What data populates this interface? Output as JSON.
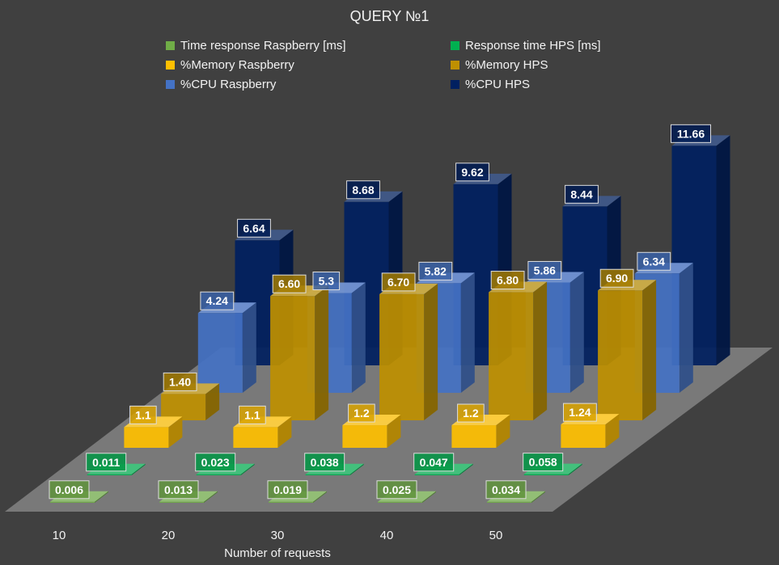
{
  "chart_data": {
    "type": "bar",
    "title": "QUERY №1",
    "xlabel": "Number of requests",
    "ylabel": "",
    "categories": [
      "10",
      "20",
      "30",
      "40",
      "50"
    ],
    "legend_position": "top",
    "grid": false,
    "series": [
      {
        "name": "Time response Raspberry [ms]",
        "color": "#70ad47",
        "values": [
          0.006,
          0.013,
          0.019,
          0.025,
          0.034
        ],
        "labels": [
          "0.006",
          "0.013",
          "0.019",
          "0.025",
          "0.034"
        ]
      },
      {
        "name": "Response time HPS [ms]",
        "color": "#00b050",
        "values": [
          0.011,
          0.023,
          0.038,
          0.047,
          0.058
        ],
        "labels": [
          "0.011",
          "0.023",
          "0.038",
          "0.047",
          "0.058"
        ]
      },
      {
        "name": "%Memory Raspberry",
        "color": "#ffc000",
        "values": [
          1.1,
          1.1,
          1.2,
          1.2,
          1.24
        ],
        "labels": [
          "1.1",
          "1.1",
          "1.2",
          "1.2",
          "1.24"
        ]
      },
      {
        "name": "%Memory HPS",
        "color": "#bf9000",
        "values": [
          1.4,
          6.6,
          6.7,
          6.8,
          6.9
        ],
        "labels": [
          "1.40",
          "6.60",
          "6.70",
          "6.80",
          "6.90"
        ]
      },
      {
        "name": "%CPU Raspberry",
        "color": "#4472c4",
        "values": [
          4.24,
          5.3,
          5.82,
          5.86,
          6.34
        ],
        "labels": [
          "4.24",
          "5.3",
          "5.82",
          "5.86",
          "6.34"
        ]
      },
      {
        "name": "%CPU HPS",
        "color": "#002060",
        "values": [
          6.64,
          8.68,
          9.62,
          8.44,
          11.66
        ],
        "labels": [
          "6.64",
          "8.68",
          "9.62",
          "8.44",
          "11.66"
        ]
      }
    ]
  }
}
